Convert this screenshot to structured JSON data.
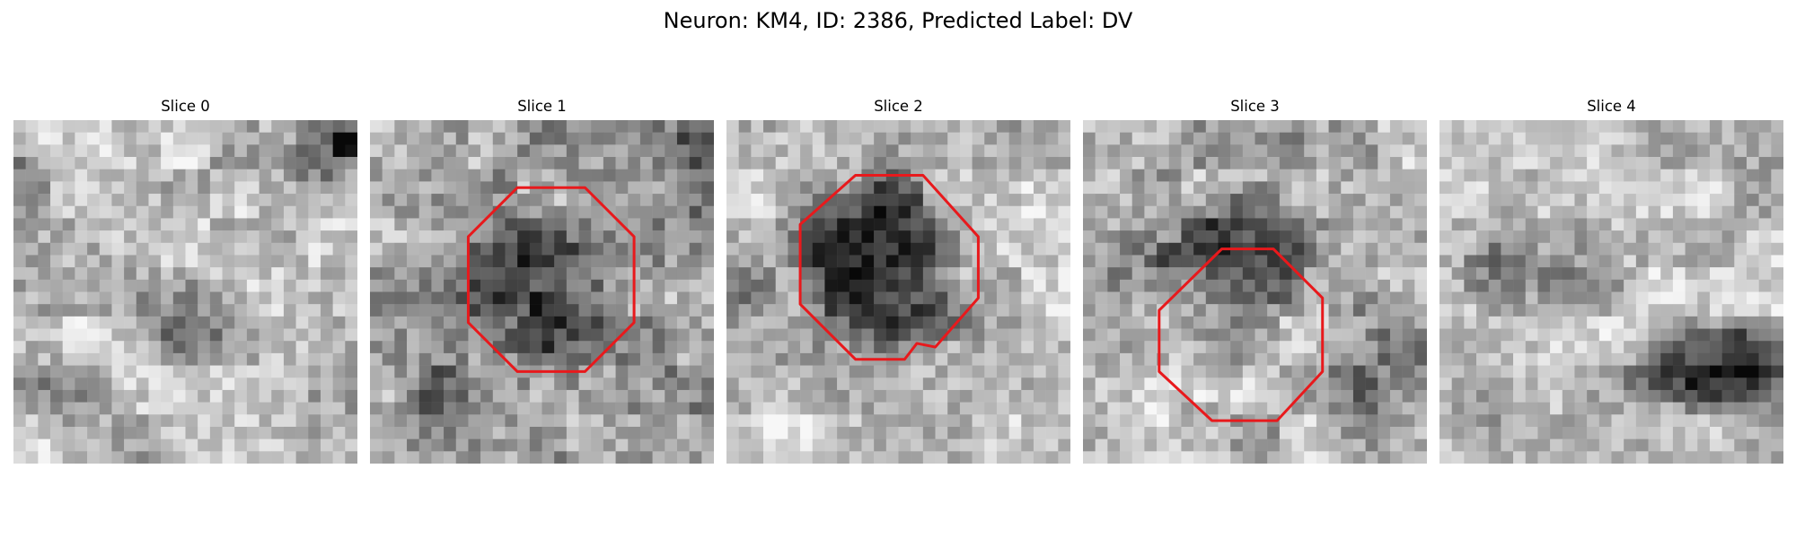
{
  "title": "Neuron: KM4, ID: 2386, Predicted Label: DV",
  "panels": [
    {
      "title": "Slice 0",
      "has_roi": false
    },
    {
      "title": "Slice 1",
      "has_roi": true
    },
    {
      "title": "Slice 2",
      "has_roi": true
    },
    {
      "title": "Slice 3",
      "has_roi": true
    },
    {
      "title": "Slice 4",
      "has_roi": false
    }
  ],
  "colors": {
    "roi_outline": "#e8191c",
    "background": "#ffffff"
  }
}
